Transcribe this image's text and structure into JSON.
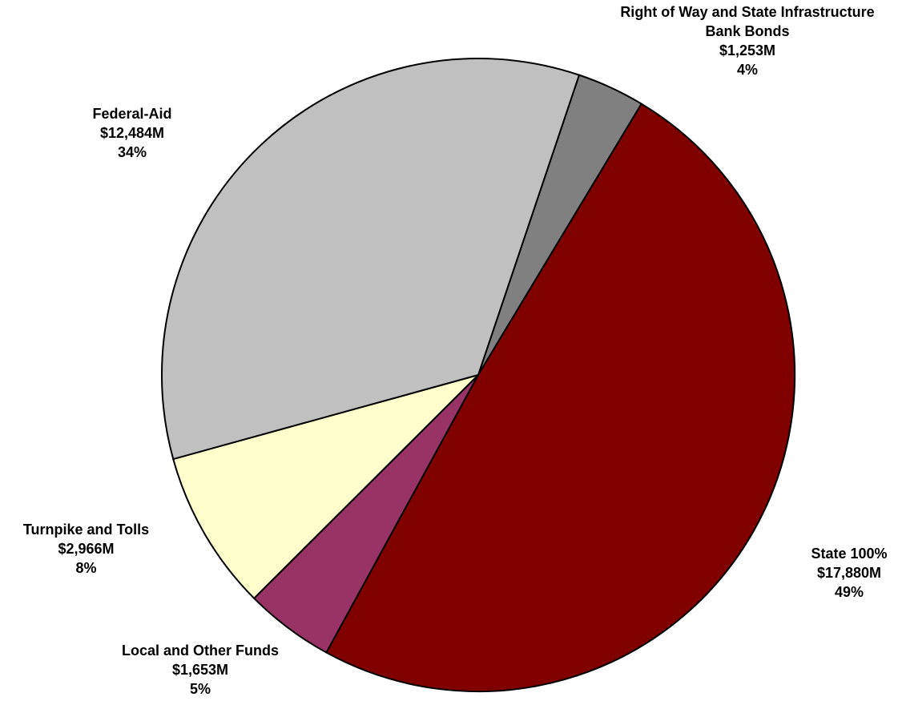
{
  "chart_data": {
    "type": "pie",
    "slices": [
      {
        "name": "Right of Way and State Infrastructure Bank Bonds",
        "value": 1253,
        "value_label": "$1,253M",
        "percent_label": "4%",
        "color": "#808080"
      },
      {
        "name": "State 100%",
        "value": 17880,
        "value_label": "$17,880M",
        "percent_label": "49%",
        "color": "#800000"
      },
      {
        "name": "Local and Other Funds",
        "value": 1653,
        "value_label": "$1,653M",
        "percent_label": "5%",
        "color": "#993366"
      },
      {
        "name": "Turnpike and Tolls",
        "value": 2966,
        "value_label": "$2,966M",
        "percent_label": "8%",
        "color": "#FFFFCC"
      },
      {
        "name": "Federal-Aid",
        "value": 12484,
        "value_label": "$12,484M",
        "percent_label": "34%",
        "color": "#C0C0C0"
      }
    ],
    "title": "",
    "legend": "none",
    "data_labels": "outside"
  }
}
